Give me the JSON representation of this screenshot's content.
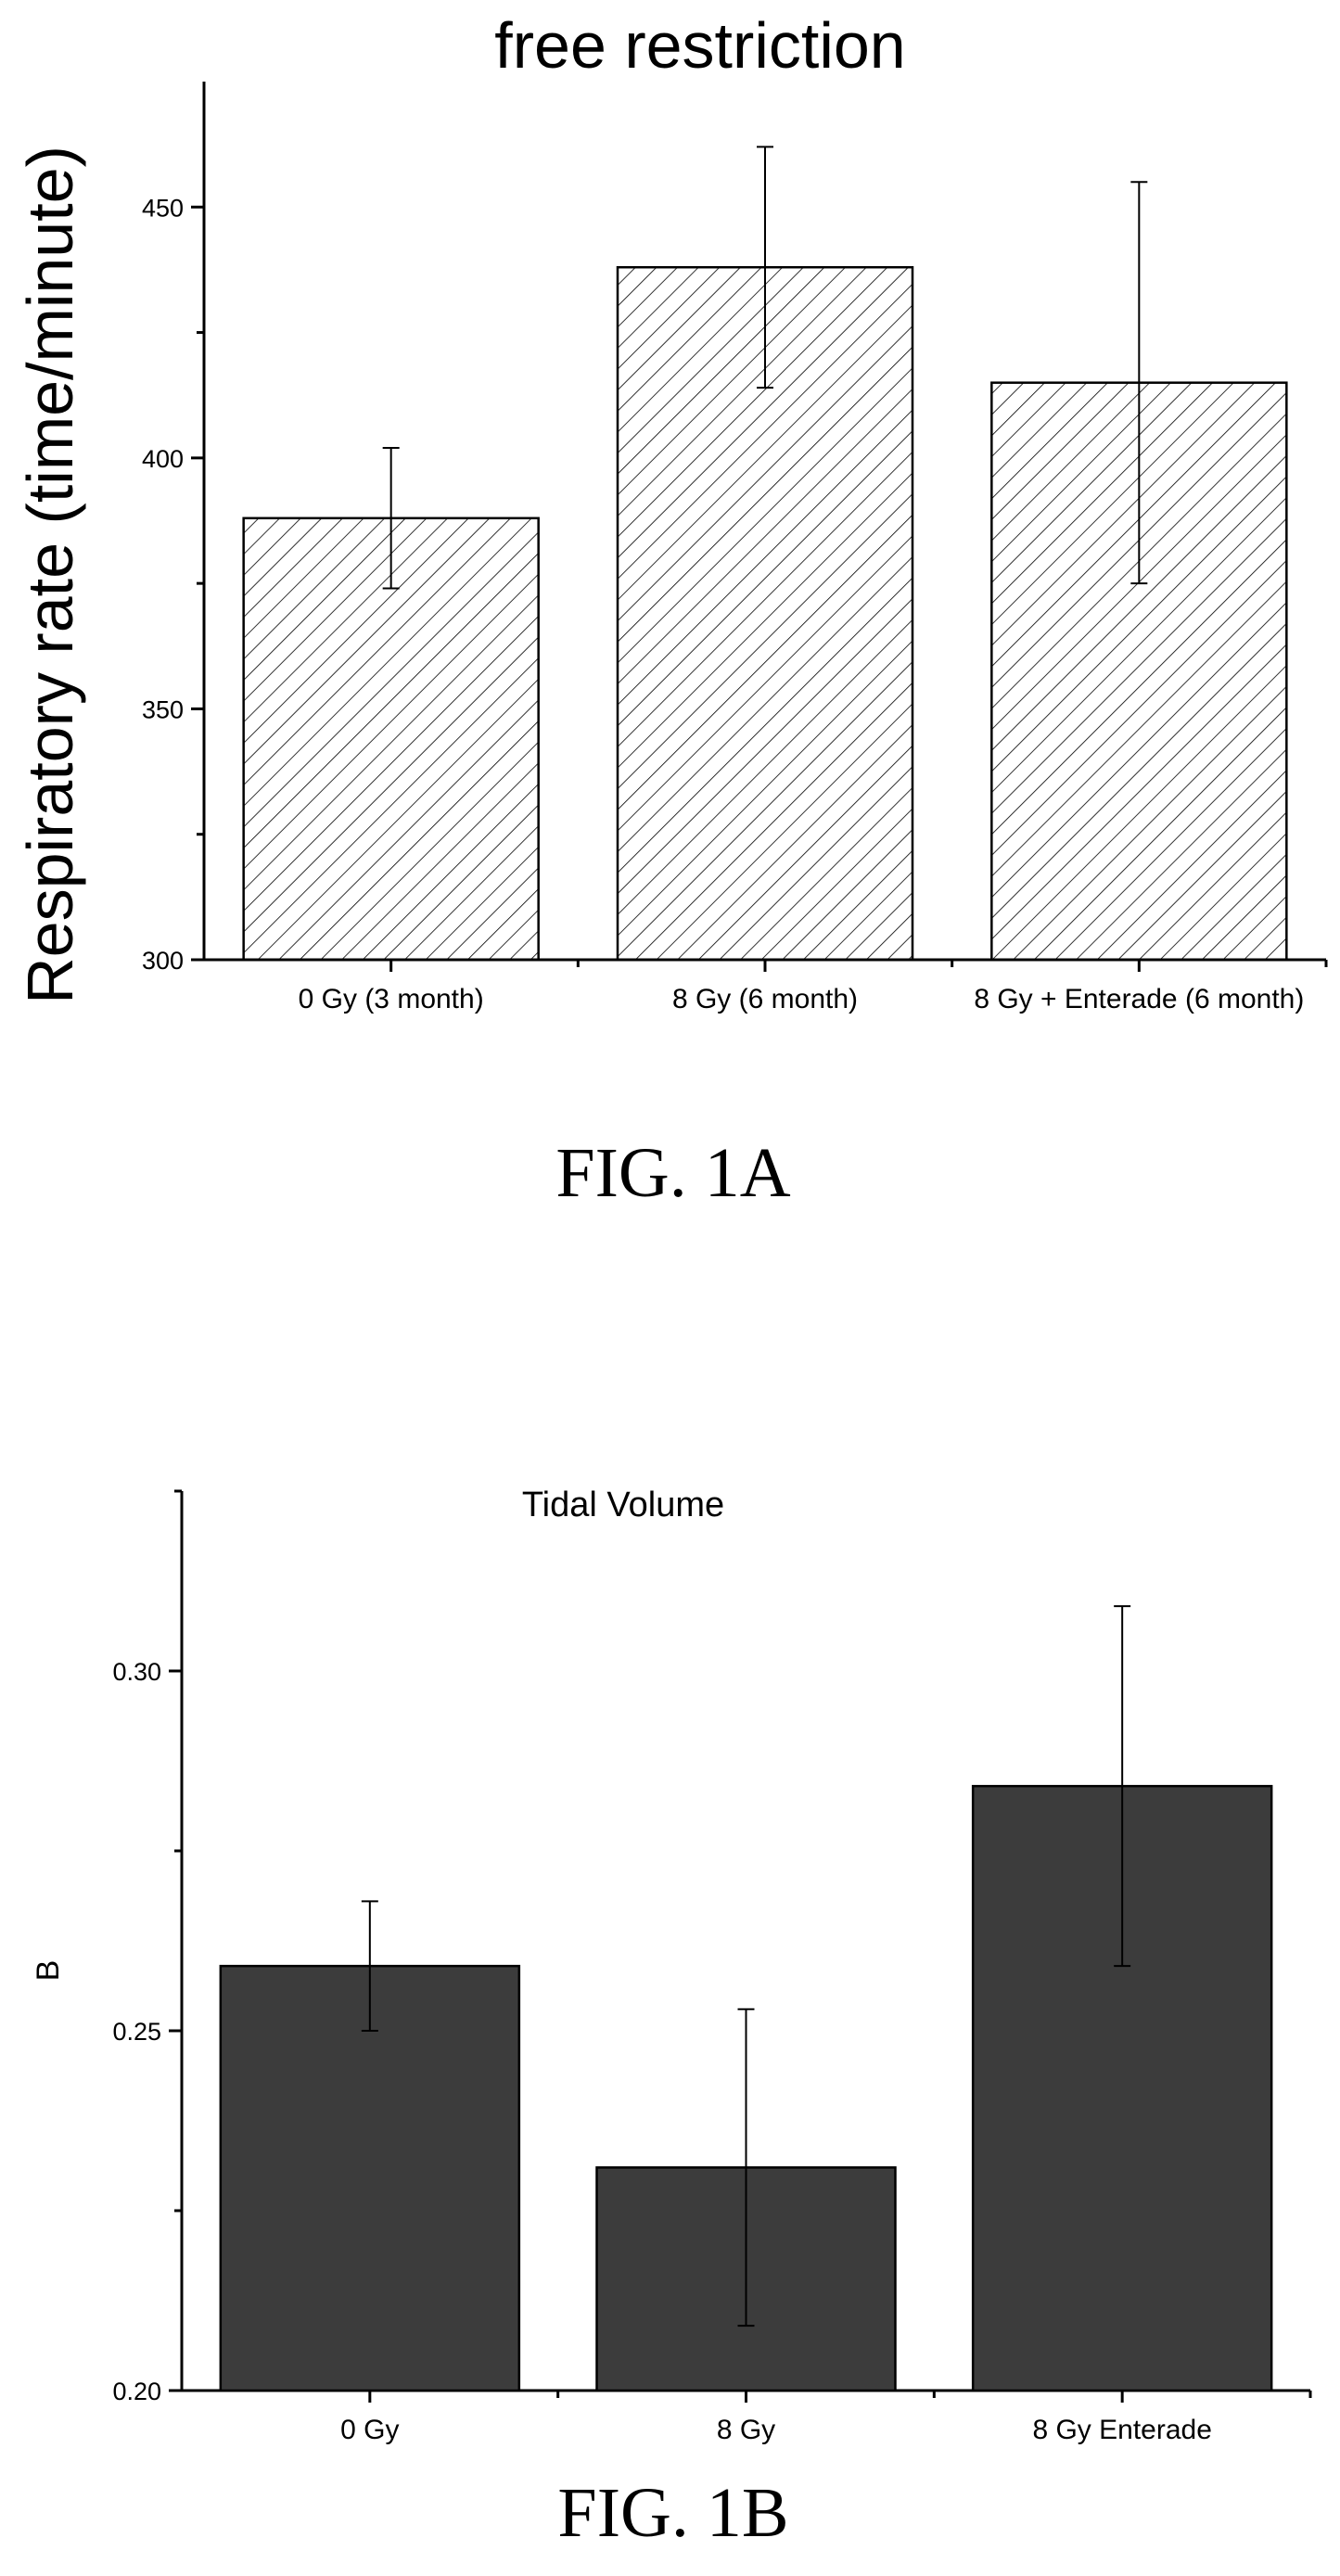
{
  "figures": [
    {
      "caption": "FIG. 1A"
    },
    {
      "caption": "FIG. 1B"
    }
  ],
  "chart_data": [
    {
      "type": "bar",
      "title": "free restriction",
      "ylabel": "Respiratory rate (time/minute)",
      "xlabel": "",
      "categories": [
        "0 Gy (3 month)",
        "8 Gy (6 month)",
        "8 Gy + Enterade (6 month)"
      ],
      "values": [
        388,
        438,
        415
      ],
      "errors": [
        14,
        24,
        40
      ],
      "ylim": [
        300,
        475
      ],
      "yticks_major": [
        300,
        350,
        400,
        450
      ],
      "yticks_minor": [
        325,
        375,
        425
      ],
      "bar_fill": "diagonal-hatch",
      "bar_color": "#ffffff",
      "grid": false
    },
    {
      "type": "bar",
      "title": "Tidal Volume",
      "ylabel": "B",
      "xlabel": "",
      "categories": [
        "0 Gy",
        "8 Gy",
        "8 Gy Enterade"
      ],
      "values": [
        0.259,
        0.231,
        0.284
      ],
      "errors": [
        0.009,
        0.022,
        0.025
      ],
      "ylim": [
        0.2,
        0.325
      ],
      "yticks_major": [
        0.2,
        0.25,
        0.3
      ],
      "yticks_minor": [
        0.225,
        0.275,
        0.325
      ],
      "bar_fill": "solid",
      "bar_color": "#3c3c3c",
      "grid": false
    }
  ]
}
